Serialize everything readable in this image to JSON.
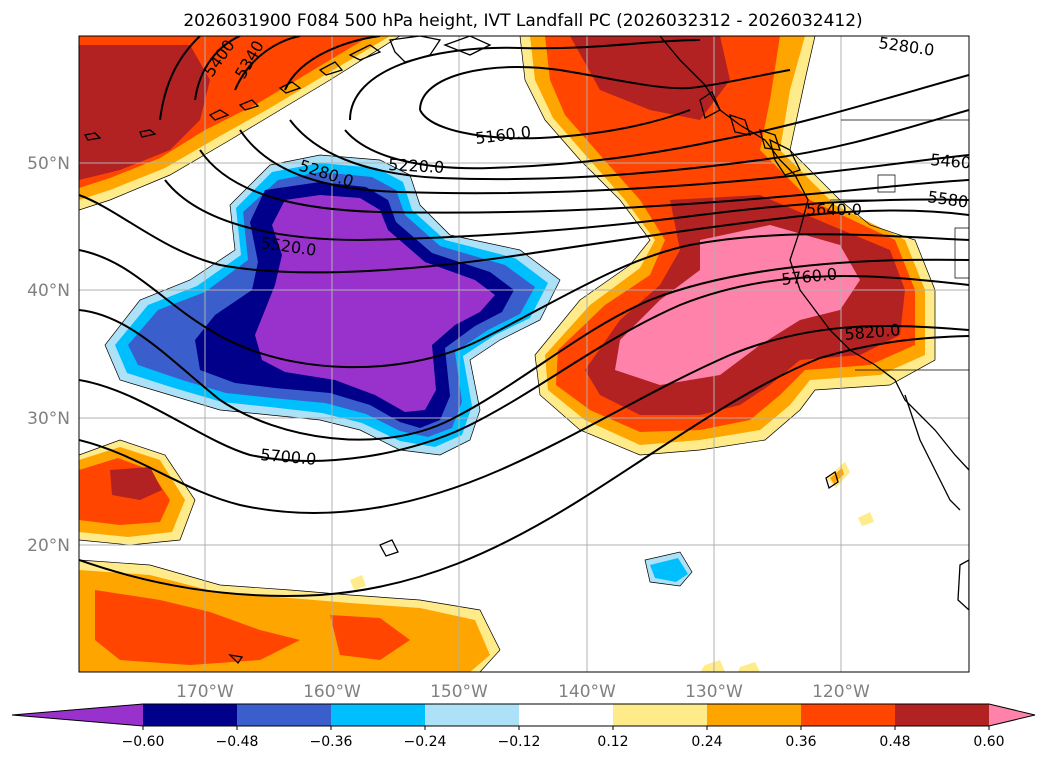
{
  "title": "2026031900 F084 500 hPa height, IVT Landfall PC (2026032312 - 2026032412)",
  "lat_labels": [
    "50°N",
    "40°N",
    "30°N",
    "20°N"
  ],
  "lon_labels": [
    "170°W",
    "160°W",
    "150°W",
    "140°W",
    "130°W",
    "120°W"
  ],
  "height_contour_labels": [
    "5160.0",
    "5220.0",
    "5280.0",
    "5280.0",
    "5340",
    "5400",
    "5460",
    "5520.0",
    "5580",
    "5640.0",
    "5700.0",
    "5760.0",
    "5820.0"
  ],
  "colorbar": {
    "ticks": [
      "−0.60",
      "−0.48",
      "−0.36",
      "−0.24",
      "−0.12",
      "0.12",
      "0.24",
      "0.36",
      "0.48",
      "0.60"
    ],
    "colors": [
      "#9932CC",
      "#00008B",
      "#3A5FCD",
      "#00BFFF",
      "#ADE1F8",
      "#FFFFFF",
      "#FFEB8A",
      "#FFA500",
      "#FF4500",
      "#B22222",
      "#FF82AB"
    ]
  }
}
